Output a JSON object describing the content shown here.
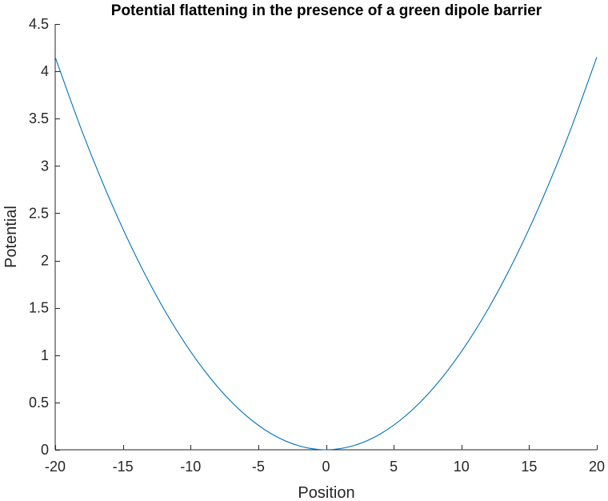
{
  "chart_data": {
    "type": "line",
    "title": "Potential flattening in the presence of a green dipole barrier",
    "xlabel": "Position",
    "ylabel": "Potential",
    "xlim": [
      -20,
      20
    ],
    "ylim": [
      0,
      4.5
    ],
    "xticks": [
      -20,
      -15,
      -10,
      -5,
      0,
      5,
      10,
      15,
      20
    ],
    "xtick_labels": [
      "-20",
      "-15",
      "-10",
      "-5",
      "0",
      "5",
      "10",
      "15",
      "20"
    ],
    "yticks": [
      0,
      0.5,
      1,
      1.5,
      2,
      2.5,
      3,
      3.5,
      4,
      4.5
    ],
    "ytick_labels": [
      "0",
      "0.5",
      "1",
      "1.5",
      "2",
      "2.5",
      "3",
      "3.5",
      "4",
      "4.5"
    ],
    "grid": false,
    "box": "left-bottom",
    "series": [
      {
        "color": "#0072BD",
        "x": [
          -20,
          -18,
          -16,
          -14,
          -12,
          -10,
          -8,
          -6,
          -4,
          -2,
          0,
          2,
          4,
          6,
          8,
          10,
          12,
          14,
          16,
          18,
          20
        ],
        "y": [
          4.15,
          3.36,
          2.656,
          2.034,
          1.494,
          1.038,
          0.664,
          0.374,
          0.166,
          0.042,
          0.0,
          0.042,
          0.166,
          0.374,
          0.664,
          1.038,
          1.494,
          2.034,
          2.656,
          3.36,
          4.15
        ]
      }
    ]
  }
}
